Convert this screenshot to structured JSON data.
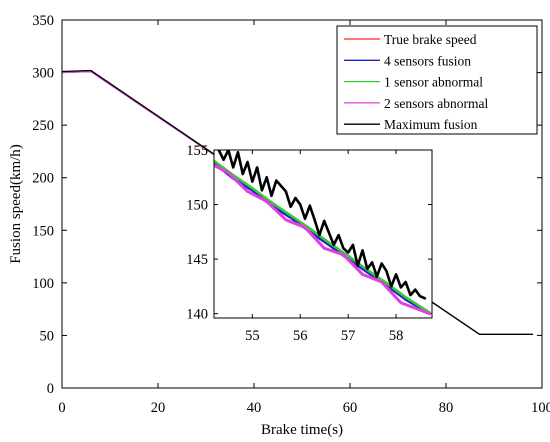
{
  "chart_data": [
    {
      "type": "line",
      "xlabel": "Brake time(s)",
      "ylabel": "Fusion speed(km/h)",
      "xlim": [
        0,
        100
      ],
      "ylim": [
        0,
        350
      ],
      "xticks": [
        0,
        20,
        40,
        60,
        80,
        100
      ],
      "yticks": [
        0,
        50,
        100,
        150,
        200,
        250,
        300,
        350
      ],
      "grid": false,
      "legend_position": "top-right",
      "series": [
        {
          "name": "True brake speed",
          "color": "#ff2020",
          "x": [
            0,
            6,
            87,
            98
          ],
          "y": [
            300,
            301,
            51,
            51
          ]
        },
        {
          "name": "4 sensors fusion",
          "color": "#1f1fcf",
          "x": [
            0,
            6,
            87,
            98
          ],
          "y": [
            300,
            301,
            51,
            51
          ]
        },
        {
          "name": "1 sensor abnormal",
          "color": "#33cc33",
          "x": [
            0,
            6,
            87,
            98
          ],
          "y": [
            300,
            301,
            51,
            51
          ]
        },
        {
          "name": "2 sensors abnormal",
          "color": "#e040e0",
          "x": [
            0,
            6,
            87,
            98
          ],
          "y": [
            300,
            301,
            51,
            51
          ]
        },
        {
          "name": "Maximum fusion",
          "color": "#000000",
          "x": [
            0,
            6,
            87,
            98
          ],
          "y": [
            301,
            302,
            51,
            51
          ]
        }
      ]
    },
    {
      "type": "line",
      "role": "inset",
      "xlim": [
        54.2,
        58.75
      ],
      "ylim": [
        139.6,
        155
      ],
      "xticks": [
        55,
        56,
        57,
        58
      ],
      "yticks": [
        140,
        145,
        150,
        155
      ],
      "series": [
        {
          "name": "True brake speed",
          "color": "#ff2020",
          "x": [
            54.2,
            58.7
          ],
          "y": [
            153.9,
            140.0
          ]
        },
        {
          "name": "4 sensors fusion",
          "color": "#1f1fcf",
          "x": [
            54.2,
            54.6,
            55.0,
            55.4,
            55.8,
            56.2,
            56.6,
            57.0,
            57.4,
            57.8,
            58.2,
            58.7
          ],
          "y": [
            153.8,
            152.4,
            151.3,
            149.9,
            148.8,
            147.5,
            146.3,
            145.0,
            143.8,
            142.6,
            141.3,
            140.0
          ]
        },
        {
          "name": "1 sensor abnormal",
          "color": "#33cc33",
          "x": [
            54.2,
            54.6,
            55.0,
            55.4,
            55.8,
            56.2,
            56.6,
            57.0,
            57.4,
            57.8,
            58.2,
            58.7
          ],
          "y": [
            154.0,
            152.7,
            151.5,
            150.2,
            149.0,
            147.8,
            146.5,
            145.3,
            144.0,
            142.8,
            141.5,
            140.1
          ]
        },
        {
          "name": "2 sensors abnormal",
          "color": "#e040e0",
          "x": [
            54.2,
            54.5,
            54.9,
            55.3,
            55.7,
            56.1,
            56.5,
            56.9,
            57.3,
            57.7,
            58.1,
            58.7
          ],
          "y": [
            153.6,
            152.9,
            151.2,
            150.3,
            148.6,
            147.9,
            146.0,
            145.4,
            143.6,
            142.9,
            141.0,
            140.0
          ]
        },
        {
          "name": "Maximum fusion",
          "color": "#000000",
          "x": [
            54.3,
            54.4,
            54.5,
            54.6,
            54.7,
            54.8,
            54.9,
            55.0,
            55.1,
            55.2,
            55.3,
            55.4,
            55.5,
            55.6,
            55.7,
            55.8,
            55.9,
            56.0,
            56.1,
            56.2,
            56.3,
            56.4,
            56.5,
            56.6,
            56.7,
            56.8,
            56.9,
            57.0,
            57.1,
            57.2,
            57.3,
            57.4,
            57.5,
            57.6,
            57.7,
            57.8,
            57.9,
            58.0,
            58.1,
            58.2,
            58.3,
            58.4,
            58.5,
            58.6
          ],
          "y": [
            155.0,
            154.1,
            155.0,
            153.4,
            154.8,
            152.8,
            153.9,
            152.1,
            153.4,
            151.3,
            152.5,
            150.8,
            152.2,
            151.7,
            151.2,
            149.8,
            150.6,
            150.0,
            148.7,
            149.9,
            148.6,
            147.2,
            148.5,
            147.4,
            146.3,
            147.2,
            146.0,
            145.6,
            146.3,
            144.4,
            145.8,
            144.1,
            144.7,
            143.4,
            144.6,
            143.9,
            142.5,
            143.6,
            142.4,
            142.9,
            141.7,
            142.2,
            141.6,
            141.4
          ]
        }
      ]
    }
  ]
}
